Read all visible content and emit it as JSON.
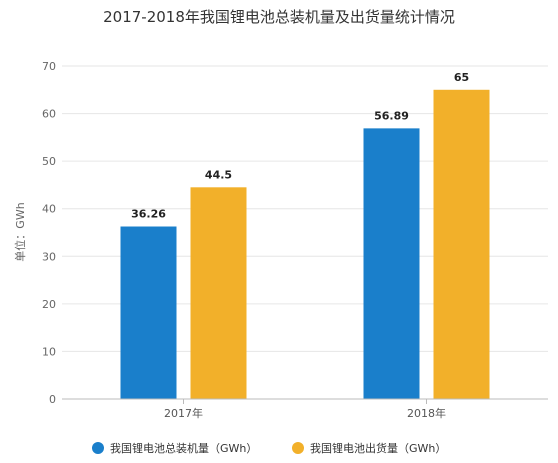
{
  "chart_data": {
    "type": "bar",
    "title": "2017-2018年我国锂电池总装机量及出货量统计情况",
    "ylabel": "单位：GWh",
    "xlabel": "",
    "categories": [
      "2017年",
      "2018年"
    ],
    "ylim": [
      0,
      70
    ],
    "yticks": [
      0,
      10,
      20,
      30,
      40,
      50,
      60,
      70
    ],
    "grid": true,
    "legend_position": "bottom",
    "series": [
      {
        "name": "我国锂电池总装机量（GWh）",
        "color": "#1a7fcb",
        "values": [
          36.26,
          56.89
        ]
      },
      {
        "name": "我国锂电池出货量（GWh）",
        "color": "#f2b02a",
        "values": [
          44.5,
          65
        ]
      }
    ]
  }
}
